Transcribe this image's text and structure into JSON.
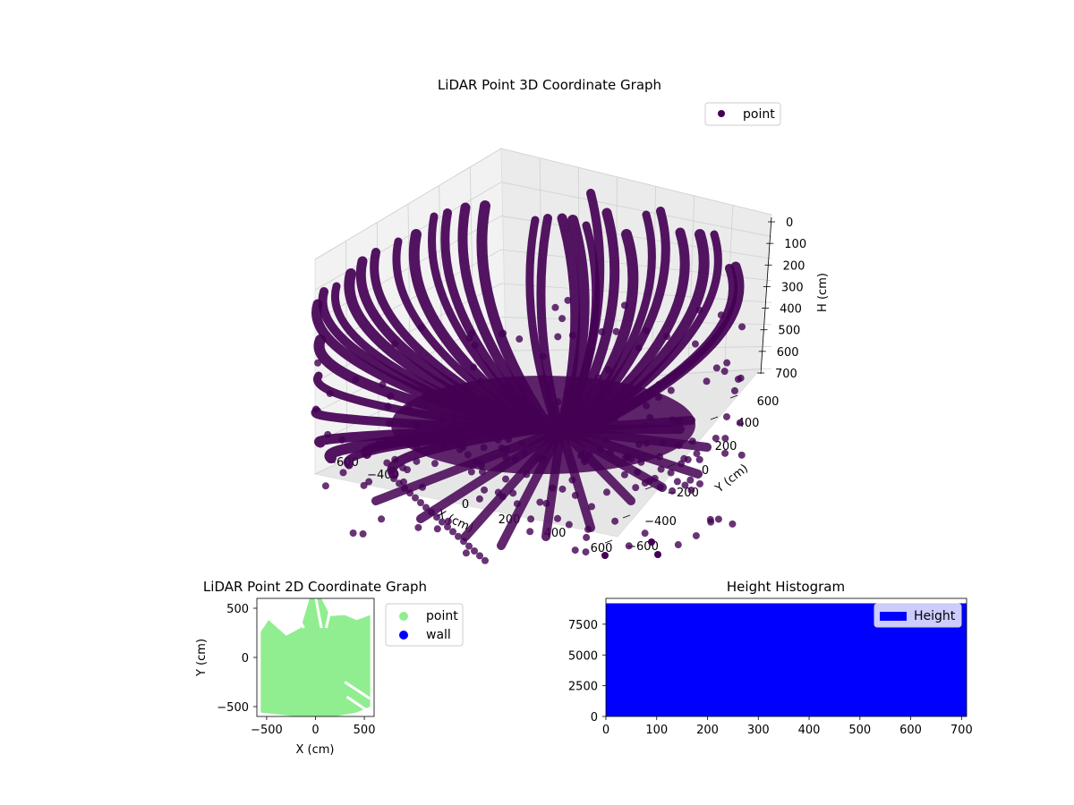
{
  "chart_data": [
    {
      "type": "scatter",
      "title": "LiDAR Point 3D Coordinate Graph",
      "xlabel": "X (cm)",
      "ylabel": "Y (cm)",
      "zlabel": "H (cm)",
      "xlim": [
        -700,
        700
      ],
      "ylim": [
        -700,
        700
      ],
      "zlim": [
        0,
        700
      ],
      "z_inverted": true,
      "x_ticks": [
        "−600",
        "−400",
        "0",
        "200",
        "400",
        "600"
      ],
      "y_ticks": [
        "−600",
        "−400",
        "−200",
        "0",
        "200",
        "400",
        "600"
      ],
      "z_ticks": [
        "0",
        "100",
        "200",
        "300",
        "400",
        "500",
        "600",
        "700"
      ],
      "series": [
        {
          "name": "point",
          "color": "#440154"
        }
      ],
      "legend": "top-right",
      "grid": true
    },
    {
      "type": "scatter",
      "title": "LiDAR Point 2D Coordinate Graph",
      "xlabel": "X (cm)",
      "ylabel": "Y (cm)",
      "xlim": [
        -600,
        600
      ],
      "ylim": [
        -600,
        600
      ],
      "x_ticks": [
        -500,
        0,
        500
      ],
      "y_ticks": [
        -500,
        0,
        500
      ],
      "series": [
        {
          "name": "point",
          "color": "#90ee90"
        },
        {
          "name": "wall",
          "color": "#0000ff"
        }
      ],
      "legend": "outside-right"
    },
    {
      "type": "bar",
      "title": "Height Histogram",
      "xlim": [
        0,
        710
      ],
      "ylim": [
        0,
        9600
      ],
      "x_ticks": [
        0,
        100,
        200,
        300,
        400,
        500,
        600,
        700
      ],
      "y_ticks": [
        0,
        2500,
        5000,
        7500
      ],
      "bin_range": [
        0,
        710
      ],
      "bin_height": 9200,
      "series": [
        {
          "name": "Height",
          "color": "#0000ff"
        }
      ],
      "legend": "top-right"
    }
  ]
}
